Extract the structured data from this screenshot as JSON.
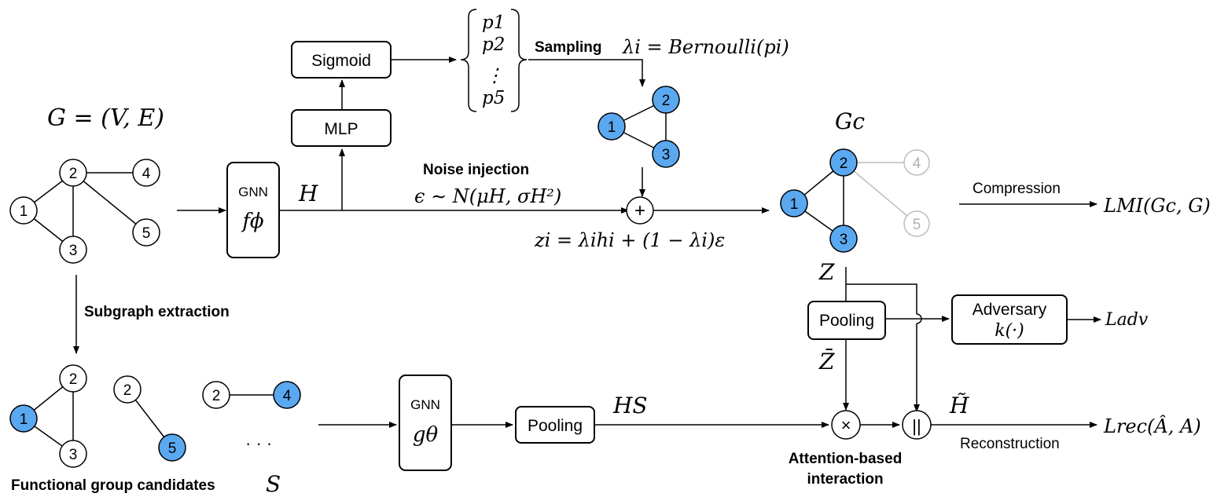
{
  "colors": {
    "node_fill": "#ffffff",
    "node_highlight": "#5aa8f0",
    "node_faded_stroke": "#bdbdbd",
    "node_faded_text": "#b0b0b0",
    "line": "#000000"
  },
  "labels": {
    "graph_def": "G = (V, E)",
    "subgraph_extraction": "Subgraph extraction",
    "functional_group_candidates": "Functional group candidates",
    "S": "S",
    "gnn1_title": "GNN",
    "gnn1_fn": "fϕ",
    "H": "H",
    "mlp": "MLP",
    "sigmoid": "Sigmoid",
    "p1": "p1",
    "p2": "p2",
    "pdots": "⋮",
    "p5": "p5",
    "sampling": "Sampling",
    "lambda_eq": "λi = Bernoulli(pi)",
    "noise_injection": "Noise injection",
    "epsilon_eq": "ϵ ∼ N(μH, σH²)",
    "plus": "+",
    "z_eq": "zi = λihi + (1 − λi)ε",
    "Gc": "Gc",
    "compression": "Compression",
    "L_MI": "LMI(Gc, G)",
    "Z": "Z",
    "pooling_top": "Pooling",
    "adversary": "Adversary",
    "k_fn": "k(·)",
    "L_adv": "Ladv",
    "Zbar": "Z̄",
    "gnn2_title": "GNN",
    "gnn2_fn": "gθ",
    "pooling_bottom": "Pooling",
    "H_S": "HS",
    "times": "×",
    "concat": "||",
    "H_tilde": "H̃",
    "L_rec": "Lrec(Â, A)",
    "reconstruction": "Reconstruction",
    "attention_line1": "Attention-based",
    "attention_line2": "interaction",
    "ellipsis": "· · ·"
  },
  "graph_main": {
    "nodes": [
      {
        "id": "1",
        "label": "1",
        "highlight": false
      },
      {
        "id": "2",
        "label": "2",
        "highlight": false
      },
      {
        "id": "3",
        "label": "3",
        "highlight": false
      },
      {
        "id": "4",
        "label": "4",
        "highlight": false
      },
      {
        "id": "5",
        "label": "5",
        "highlight": false
      }
    ],
    "edges": [
      [
        "1",
        "2"
      ],
      [
        "1",
        "3"
      ],
      [
        "2",
        "3"
      ],
      [
        "2",
        "4"
      ],
      [
        "2",
        "5"
      ]
    ]
  },
  "graph_sampled": {
    "nodes": [
      {
        "id": "1",
        "label": "1",
        "highlight": true
      },
      {
        "id": "2",
        "label": "2",
        "highlight": true
      },
      {
        "id": "3",
        "label": "3",
        "highlight": true
      }
    ],
    "edges": [
      [
        "1",
        "2"
      ],
      [
        "1",
        "3"
      ],
      [
        "2",
        "3"
      ]
    ]
  },
  "graph_gc": {
    "nodes": [
      {
        "id": "1",
        "label": "1",
        "highlight": true
      },
      {
        "id": "2",
        "label": "2",
        "highlight": true
      },
      {
        "id": "3",
        "label": "3",
        "highlight": true
      },
      {
        "id": "4",
        "label": "4",
        "faded": true
      },
      {
        "id": "5",
        "label": "5",
        "faded": true
      }
    ],
    "edges": [
      [
        "1",
        "2"
      ],
      [
        "1",
        "3"
      ],
      [
        "2",
        "3"
      ]
    ],
    "faded_edges": [
      [
        "2",
        "4"
      ],
      [
        "2",
        "5"
      ]
    ]
  },
  "candidates": [
    {
      "nodes": [
        {
          "label": "1",
          "highlight": true
        },
        {
          "label": "2",
          "highlight": false
        },
        {
          "label": "3",
          "highlight": false
        }
      ]
    },
    {
      "nodes": [
        {
          "label": "2",
          "highlight": false
        },
        {
          "label": "5",
          "highlight": true
        }
      ]
    },
    {
      "nodes": [
        {
          "label": "2",
          "highlight": false
        },
        {
          "label": "4",
          "highlight": true
        }
      ]
    }
  ]
}
